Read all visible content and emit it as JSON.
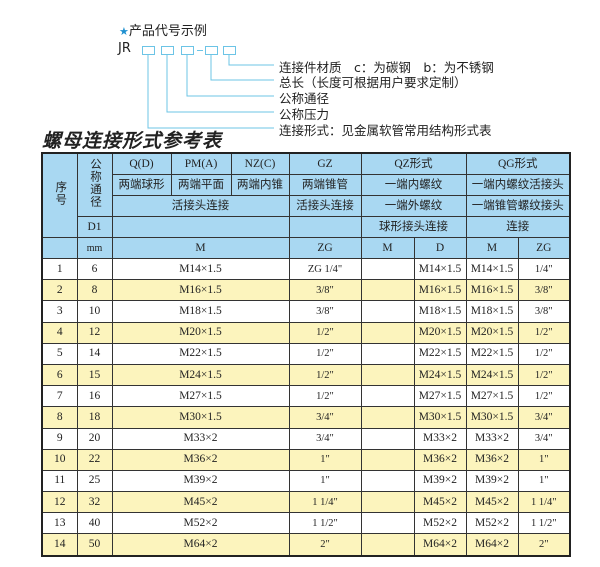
{
  "legend": {
    "title": "产品代号示例",
    "code_prefix": "JR",
    "labels": [
      "连接件材质　c：为碳钢　b：为不锈钢",
      "总长（长度可根据用户要求定制）",
      "公称通径",
      "公称压力",
      "连接形式：见金属软管常用结构形式表"
    ]
  },
  "table_title": "螺母连接形式参考表",
  "header": {
    "seq": "序号",
    "dn": "公称通径",
    "d1": "D1",
    "mm": "mm",
    "types": [
      "Q(D)",
      "PM(A)",
      "NZ(C)",
      "GZ",
      "QZ形式",
      "QG形式"
    ],
    "shapes": [
      "两端球形",
      "两端平面",
      "两端内锥",
      "两端锥管",
      "一端内螺纹",
      "一端内螺纹活接头"
    ],
    "row3": [
      "活接头连接",
      "活接头连接",
      "一端外螺纹",
      "一端锥管螺纹接头"
    ],
    "row4": [
      "球形接头连接",
      "连接"
    ],
    "units": [
      "M",
      "ZG",
      "M",
      "D",
      "M",
      "ZG"
    ]
  },
  "rows": [
    [
      "1",
      "6",
      "M14×1.5",
      "ZG 1/4\"",
      "",
      "M14×1.5",
      "M14×1.5",
      "1/4\""
    ],
    [
      "2",
      "8",
      "M16×1.5",
      "3/8\"",
      "",
      "M16×1.5",
      "M16×1.5",
      "3/8\""
    ],
    [
      "3",
      "10",
      "M18×1.5",
      "3/8\"",
      "",
      "M18×1.5",
      "M18×1.5",
      "3/8\""
    ],
    [
      "4",
      "12",
      "M20×1.5",
      "1/2\"",
      "",
      "M20×1.5",
      "M20×1.5",
      "1/2\""
    ],
    [
      "5",
      "14",
      "M22×1.5",
      "1/2\"",
      "",
      "M22×1.5",
      "M22×1.5",
      "1/2\""
    ],
    [
      "6",
      "15",
      "M24×1.5",
      "1/2\"",
      "",
      "M24×1.5",
      "M24×1.5",
      "1/2\""
    ],
    [
      "7",
      "16",
      "M27×1.5",
      "1/2\"",
      "",
      "M27×1.5",
      "M27×1.5",
      "1/2\""
    ],
    [
      "8",
      "18",
      "M30×1.5",
      "3/4\"",
      "",
      "M30×1.5",
      "M30×1.5",
      "3/4\""
    ],
    [
      "9",
      "20",
      "M33×2",
      "3/4\"",
      "",
      "M33×2",
      "M33×2",
      "3/4\""
    ],
    [
      "10",
      "22",
      "M36×2",
      "1\"",
      "",
      "M36×2",
      "M36×2",
      "1\""
    ],
    [
      "11",
      "25",
      "M39×2",
      "1\"",
      "",
      "M39×2",
      "M39×2",
      "1\""
    ],
    [
      "12",
      "32",
      "M45×2",
      "1 1/4\"",
      "",
      "M45×2",
      "M45×2",
      "1 1/4\""
    ],
    [
      "13",
      "40",
      "M52×2",
      "1 1/2\"",
      "",
      "M52×2",
      "M52×2",
      "1 1/2\""
    ],
    [
      "14",
      "50",
      "M64×2",
      "2\"",
      "",
      "M64×2",
      "M64×2",
      "2\""
    ]
  ],
  "colors": {
    "header_bg": "#a9d8f2",
    "alt_row_bg": "#fcf4bd",
    "accent": "#6cc4e6"
  }
}
